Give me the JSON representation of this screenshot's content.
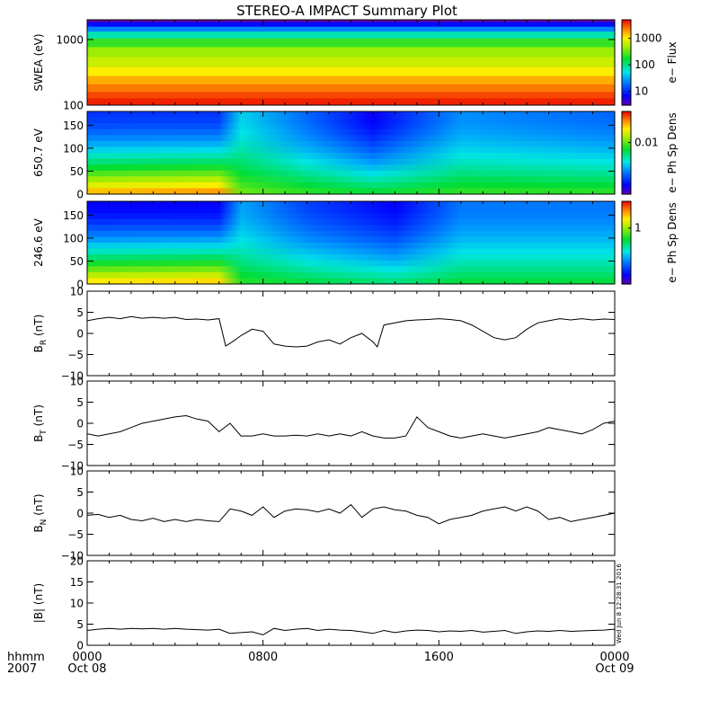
{
  "title": "STEREO-A IMPACT Summary Plot",
  "stamp": "Wed Jun  8 12:28:31 2016",
  "time_axis": {
    "unit_label": "hhmm",
    "year_label": "2007",
    "ticks": [
      {
        "hour": 0,
        "label": "0000",
        "date": "Oct 08"
      },
      {
        "hour": 8,
        "label": "0800",
        "date": ""
      },
      {
        "hour": 16,
        "label": "1600",
        "date": ""
      },
      {
        "hour": 24,
        "label": "0000",
        "date": "Oct 09"
      }
    ],
    "range": [
      0,
      24
    ]
  },
  "chart_data": [
    {
      "type": "heatmap",
      "name": "swea",
      "ylabel": "SWEA (eV)",
      "yscale": "log",
      "ylim": [
        100,
        2000
      ],
      "yticks": [
        "1000",
        "100"
      ],
      "yticks_values": [
        1000,
        100
      ],
      "colorbar_label": "e− Flux",
      "colorbar_scale": "log",
      "colorbar_ticks": [
        "1000",
        "100",
        "10"
      ],
      "colorbar_ticks_values": [
        1000,
        100,
        10
      ],
      "colorbar_range": [
        3,
        5000
      ],
      "level_rows": [
        {
          "energy": 2000,
          "value": 3
        },
        {
          "energy": 1700,
          "value": 8
        },
        {
          "energy": 1450,
          "value": 25
        },
        {
          "energy": 1200,
          "value": 80
        },
        {
          "energy": 900,
          "value": 250
        },
        {
          "energy": 650,
          "value": 500
        },
        {
          "energy": 450,
          "value": 700
        },
        {
          "energy": 320,
          "value": 1100
        },
        {
          "energy": 240,
          "value": 1800
        },
        {
          "energy": 180,
          "value": 2600
        },
        {
          "energy": 140,
          "value": 3600
        },
        {
          "energy": 115,
          "value": 4500
        }
      ]
    },
    {
      "type": "heatmap",
      "name": "pad_650",
      "ylabel": "650.7 eV",
      "ylim": [
        0,
        180
      ],
      "yticks": [
        "150",
        "100",
        "50",
        "0"
      ],
      "yticks_values": [
        150,
        100,
        50,
        0
      ],
      "colorbar_label": "e− Ph Sp Dens",
      "colorbar_scale": "log",
      "colorbar_ticks": [
        "0.01"
      ],
      "colorbar_ticks_values": [
        0.01
      ],
      "colorbar_range": [
        0.001,
        0.04
      ],
      "levels_by_hour": [
        {
          "hour": 0,
          "top": 0.002,
          "bottom": 0.03
        },
        {
          "hour": 6,
          "top": 0.002,
          "bottom": 0.035
        },
        {
          "hour": 7,
          "top": 0.004,
          "bottom": 0.012
        },
        {
          "hour": 10,
          "top": 0.0025,
          "bottom": 0.01
        },
        {
          "hour": 13,
          "top": 0.0015,
          "bottom": 0.009
        },
        {
          "hour": 17,
          "top": 0.003,
          "bottom": 0.01
        },
        {
          "hour": 24,
          "top": 0.0025,
          "bottom": 0.01
        }
      ]
    },
    {
      "type": "heatmap",
      "name": "pad_246",
      "ylabel": "246.6 eV",
      "ylim": [
        0,
        180
      ],
      "yticks": [
        "150",
        "100",
        "50",
        "0"
      ],
      "yticks_values": [
        150,
        100,
        50,
        0
      ],
      "colorbar_label": "e− Ph Sp Dens",
      "colorbar_scale": "log",
      "colorbar_ticks": [
        "1"
      ],
      "colorbar_ticks_values": [
        1
      ],
      "colorbar_range": [
        0.1,
        3
      ],
      "levels_by_hour": [
        {
          "hour": 0,
          "top": 0.15,
          "bottom": 2
        },
        {
          "hour": 6,
          "top": 0.15,
          "bottom": 2.2
        },
        {
          "hour": 7,
          "top": 0.3,
          "bottom": 0.8
        },
        {
          "hour": 10,
          "top": 0.2,
          "bottom": 0.7
        },
        {
          "hour": 14,
          "top": 0.15,
          "bottom": 0.6
        },
        {
          "hour": 17,
          "top": 0.25,
          "bottom": 0.7
        },
        {
          "hour": 24,
          "top": 0.25,
          "bottom": 0.7
        }
      ]
    },
    {
      "type": "line",
      "name": "br",
      "ylabel_main": "B",
      "ylabel_sub": "R",
      "ylabel_unit": " (nT)",
      "ylim": [
        -10,
        10
      ],
      "yticks": [
        "10",
        "5",
        "0",
        "−5",
        "−10"
      ],
      "yticks_values": [
        10,
        5,
        0,
        -5,
        -10
      ],
      "x": [
        0,
        0.5,
        1,
        1.5,
        2,
        2.5,
        3,
        3.5,
        4,
        4.5,
        5,
        5.5,
        6,
        6.3,
        6.6,
        7,
        7.5,
        8,
        8.5,
        9,
        9.5,
        10,
        10.5,
        11,
        11.5,
        12,
        12.5,
        13,
        13.2,
        13.5,
        14,
        14.5,
        15,
        15.5,
        16,
        16.5,
        17,
        17.5,
        18,
        18.5,
        19,
        19.5,
        20,
        20.5,
        21,
        21.5,
        22,
        22.5,
        23,
        23.5,
        24
      ],
      "y": [
        3,
        3.5,
        3.8,
        3.5,
        4,
        3.6,
        3.8,
        3.6,
        3.8,
        3.3,
        3.4,
        3.2,
        3.5,
        -3,
        -2,
        -0.5,
        1,
        0.5,
        -2.5,
        -3,
        -3.2,
        -3,
        -2,
        -1.5,
        -2.5,
        -1,
        0,
        -2,
        -3.2,
        2,
        2.5,
        3,
        3.2,
        3.3,
        3.5,
        3.3,
        3,
        2,
        0.5,
        -1,
        -1.5,
        -1,
        1,
        2.5,
        3,
        3.5,
        3.2,
        3.5,
        3.2,
        3.4,
        3.3
      ]
    },
    {
      "type": "line",
      "name": "bt",
      "ylabel_main": "B",
      "ylabel_sub": "T",
      "ylabel_unit": " (nT)",
      "ylim": [
        -10,
        10
      ],
      "yticks": [
        "10",
        "5",
        "0",
        "−5",
        "−10"
      ],
      "yticks_values": [
        10,
        5,
        0,
        -5,
        -10
      ],
      "x": [
        0,
        0.5,
        1,
        1.5,
        2,
        2.5,
        3,
        3.5,
        4,
        4.5,
        5,
        5.5,
        6,
        6.5,
        7,
        7.5,
        8,
        8.5,
        9,
        9.5,
        10,
        10.5,
        11,
        11.5,
        12,
        12.5,
        13,
        13.5,
        14,
        14.5,
        15,
        15.5,
        16,
        16.5,
        17,
        17.5,
        18,
        18.5,
        19,
        19.5,
        20,
        20.5,
        21,
        21.5,
        22,
        22.5,
        23,
        23.5,
        24
      ],
      "y": [
        -2.5,
        -3,
        -2.5,
        -2,
        -1,
        0,
        0.5,
        1,
        1.5,
        1.8,
        1,
        0.5,
        -2,
        0,
        -3,
        -3,
        -2.5,
        -3,
        -3,
        -2.8,
        -3,
        -2.5,
        -3,
        -2.5,
        -3,
        -2,
        -3,
        -3.5,
        -3.5,
        -3,
        1.5,
        -1,
        -2,
        -3,
        -3.5,
        -3,
        -2.5,
        -3,
        -3.5,
        -3,
        -2.5,
        -2,
        -1,
        -1.5,
        -2,
        -2.5,
        -1.5,
        0,
        0.5
      ]
    },
    {
      "type": "line",
      "name": "bn",
      "ylabel_main": "B",
      "ylabel_sub": "N",
      "ylabel_unit": " (nT)",
      "ylim": [
        -10,
        10
      ],
      "yticks": [
        "10",
        "5",
        "0",
        "−5",
        "−10"
      ],
      "yticks_values": [
        10,
        5,
        0,
        -5,
        -10
      ],
      "x": [
        0,
        0.5,
        1,
        1.5,
        2,
        2.5,
        3,
        3.5,
        4,
        4.5,
        5,
        5.5,
        6,
        6.5,
        7,
        7.5,
        8,
        8.5,
        9,
        9.5,
        10,
        10.5,
        11,
        11.5,
        12,
        12.5,
        13,
        13.5,
        14,
        14.5,
        15,
        15.5,
        16,
        16.5,
        17,
        17.5,
        18,
        18.5,
        19,
        19.5,
        20,
        20.5,
        21,
        21.5,
        22,
        22.5,
        23,
        23.5,
        24
      ],
      "y": [
        -0.5,
        -0.3,
        -1,
        -0.5,
        -1.5,
        -1.8,
        -1.2,
        -2,
        -1.5,
        -2,
        -1.5,
        -1.8,
        -2,
        1,
        0.5,
        -0.5,
        1.5,
        -1,
        0.5,
        1,
        0.8,
        0.3,
        1,
        0,
        2,
        -1,
        1,
        1.5,
        0.8,
        0.5,
        -0.5,
        -1,
        -2.5,
        -1.5,
        -1,
        -0.5,
        0.5,
        1,
        1.5,
        0.5,
        1.5,
        0.5,
        -1.5,
        -1,
        -2,
        -1.5,
        -1,
        -0.5,
        0
      ]
    },
    {
      "type": "line",
      "name": "bmag",
      "ylabel_main": "|B| (nT)",
      "ylim": [
        0,
        20
      ],
      "yticks": [
        "20",
        "15",
        "10",
        "5",
        "0"
      ],
      "yticks_values": [
        20,
        15,
        10,
        5,
        0
      ],
      "x": [
        0,
        0.5,
        1,
        1.5,
        2,
        2.5,
        3,
        3.5,
        4,
        4.5,
        5,
        5.5,
        6,
        6.5,
        7,
        7.5,
        8,
        8.5,
        9,
        9.5,
        10,
        10.5,
        11,
        11.5,
        12,
        12.5,
        13,
        13.5,
        14,
        14.5,
        15,
        15.5,
        16,
        16.5,
        17,
        17.5,
        18,
        18.5,
        19,
        19.5,
        20,
        20.5,
        21,
        21.5,
        22,
        22.5,
        23,
        23.5,
        24
      ],
      "y": [
        3.5,
        3.8,
        4,
        3.8,
        4,
        3.9,
        4,
        3.8,
        4,
        3.8,
        3.7,
        3.6,
        3.8,
        2.8,
        3,
        3.2,
        2.5,
        4,
        3.5,
        3.8,
        4,
        3.5,
        3.8,
        3.6,
        3.5,
        3.2,
        2.8,
        3.5,
        3,
        3.4,
        3.6,
        3.5,
        3.2,
        3.4,
        3.3,
        3.5,
        3.1,
        3.3,
        3.5,
        2.8,
        3.2,
        3.4,
        3.3,
        3.5,
        3.3,
        3.4,
        3.5,
        3.6,
        3.8
      ]
    }
  ]
}
